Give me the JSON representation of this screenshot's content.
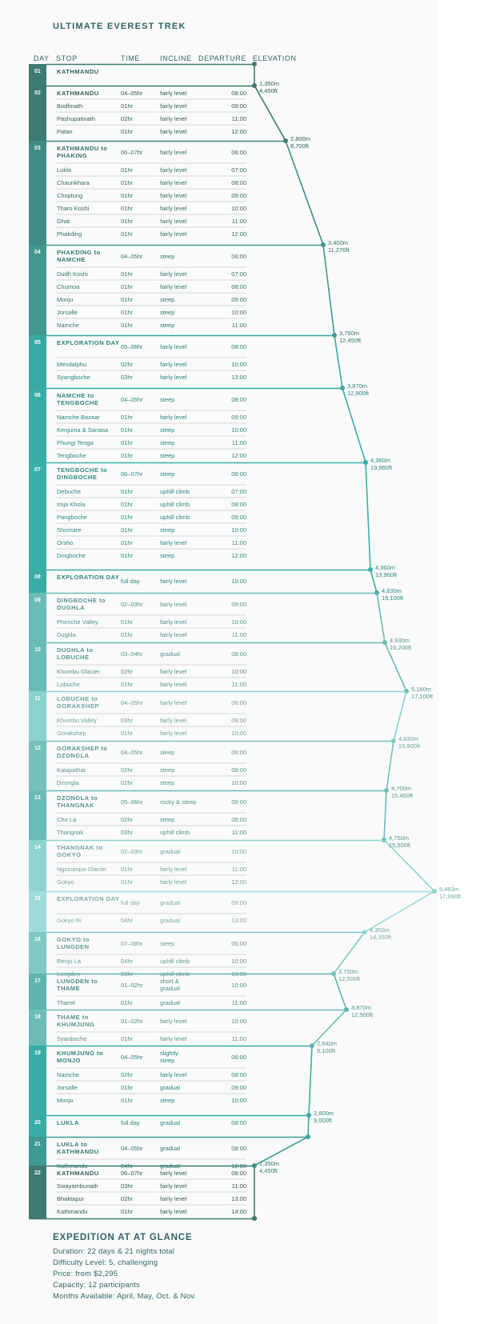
{
  "title": "ULTIMATE EVEREST TREK",
  "columns": {
    "day": "DAY",
    "stop": "STOP",
    "time": "TIME",
    "incline": "INCLINE",
    "departure": "DEPARTURE",
    "elevation": "ELEVATION"
  },
  "days": [
    {
      "day": "01",
      "color": "#3d7a74",
      "stops": [
        [
          "KATHMANDU",
          "",
          "",
          ""
        ]
      ],
      "elevation": [
        "1,350m",
        "4,450ft"
      ]
    },
    {
      "day": "02",
      "color": "#3d7a74",
      "stops": [
        [
          "KATHMANDU",
          "04–05hr",
          "fairly level",
          "08:00"
        ],
        [
          "Bodhnath",
          "01hr",
          "fairly level",
          "09:00"
        ],
        [
          "Pashupatinath",
          "02hr",
          "fairly level",
          "11:00"
        ],
        [
          "Patan",
          "01hr",
          "fairly level",
          "12:00"
        ]
      ],
      "elevation": [
        "2,800m",
        "8,700ft"
      ]
    },
    {
      "day": "03",
      "color": "#408c85",
      "stops": [
        [
          "KATHMANDU to PHAKING",
          "06–07hr",
          "fairly level",
          "06:00"
        ],
        [
          "Lukla",
          "01hr",
          "fairly level",
          "07:00"
        ],
        [
          "Chaurikhara",
          "01hr",
          "fairly level",
          "08:00"
        ],
        [
          "Choplung",
          "01hr",
          "fairly level",
          "09:00"
        ],
        [
          "Tharo Koshi",
          "01hr",
          "fairly level",
          "10:00"
        ],
        [
          "Ghat",
          "01hr",
          "fairly level",
          "11:00"
        ],
        [
          "Phakding",
          "01hr",
          "fairly level",
          "12:00"
        ]
      ],
      "elevation": [
        "3,400m",
        "11,270ft"
      ]
    },
    {
      "day": "04",
      "color": "#43978f",
      "stops": [
        [
          "PHAKDING to NAMCHE",
          "04–05hr",
          "steep",
          "06:00"
        ],
        [
          "Dudh Koshi",
          "01hr",
          "fairly level",
          "07:00"
        ],
        [
          "Chumoa",
          "01hr",
          "fairly level",
          "08:00"
        ],
        [
          "Monju",
          "01hr",
          "steep",
          "09:00"
        ],
        [
          "Jorsalle",
          "01hr",
          "steep",
          "10:00"
        ],
        [
          "Namche",
          "01hr",
          "steep",
          "11:00"
        ]
      ],
      "elevation": [
        "3,790m",
        "12,450ft"
      ]
    },
    {
      "day": "05",
      "color": "#38a8a2",
      "stops": [
        [
          "EXPLORATION DAY",
          "05–06hr",
          "fairly level",
          "08:00"
        ],
        [
          "Mendalphu",
          "02hr",
          "fairly level",
          "10:00"
        ],
        [
          "Syangboche",
          "03hr",
          "fairly level",
          "13:00"
        ]
      ],
      "elevation": [
        "3,870m",
        "12,900ft"
      ]
    },
    {
      "day": "06",
      "color": "#38aca5",
      "stops": [
        [
          "NAMCHE to TENGBOCHE",
          "04–05hr",
          "steep",
          "08:00"
        ],
        [
          "Namche Bazaar",
          "01hr",
          "fairly level",
          "09:00"
        ],
        [
          "Kenjuma & Sanasa",
          "01hr",
          "steep",
          "10:00"
        ],
        [
          "Phungi Tenga",
          "01hr",
          "steep",
          "11:00"
        ],
        [
          "Tengboche",
          "01hr",
          "steep",
          "12:00"
        ]
      ],
      "elevation": [
        "4,360m",
        "13,960ft"
      ]
    },
    {
      "day": "07",
      "color": "#38b0a9",
      "stops": [
        [
          "TENGBOCHE to DINGBOCHE",
          "06–07hr",
          "steep",
          "06:00"
        ],
        [
          "Debuche",
          "01hr",
          "uphill climb",
          "07:00"
        ],
        [
          "Imja Khola",
          "01hr",
          "uphill climb",
          "08:00"
        ],
        [
          "Pangboche",
          "01hr",
          "uphill climb",
          "09:00"
        ],
        [
          "Shomare",
          "01hr",
          "steep",
          "10:00"
        ],
        [
          "Orsho",
          "01hr",
          "fairly level",
          "11:00"
        ],
        [
          "Dingboche",
          "01hr",
          "steep",
          "12:00"
        ]
      ],
      "elevation": [
        "4,360m",
        "13,960ft"
      ]
    },
    {
      "day": "08",
      "color": "#3aaca6",
      "stops": [
        [
          "EXPLORATION DAY",
          "full day",
          "fairly level",
          "10:00"
        ]
      ],
      "elevation": [
        "4,630m",
        "15,100ft"
      ]
    },
    {
      "day": "09",
      "color": "#6bbcb6",
      "stops": [
        [
          "DINGBOCHE to DUGHLA",
          "02–03hr",
          "fairly level",
          "09:00"
        ],
        [
          "Pheriche Valley",
          "01hr",
          "fairly level",
          "10:00"
        ],
        [
          "Dughla",
          "01hr",
          "fairly level",
          "11:00"
        ]
      ],
      "elevation": [
        "4,930m",
        "16,200ft"
      ]
    },
    {
      "day": "10",
      "color": "#6bbcb6",
      "stops": [
        [
          "DUGHLA to LOBUCHE",
          "03–04hr",
          "gradual",
          "08:00"
        ],
        [
          "Khumbu Glacier",
          "02hr",
          "fairly level",
          "10:00"
        ],
        [
          "Lobuche",
          "01hr",
          "fairly level",
          "11:00"
        ]
      ],
      "elevation": [
        "5,160m",
        "17,100ft"
      ]
    },
    {
      "day": "11",
      "color": "#8ad2cd",
      "stops": [
        [
          "LOBUCHE to GORAKSHEP",
          "04–05hr",
          "fairly level",
          "06:00"
        ],
        [
          "Khumbu Valley",
          "03hr",
          "fairly level",
          "09:00"
        ],
        [
          "Gorakshep",
          "01hr",
          "fairly level",
          "10:00"
        ]
      ],
      "elevation": [
        "4,830m",
        "15,900ft"
      ]
    },
    {
      "day": "12",
      "color": "#74c0ba",
      "stops": [
        [
          "GORAKSHEP to DZONGLA",
          "04–05hr",
          "steep",
          "06:00"
        ],
        [
          "Kalapathar",
          "02hr",
          "steep",
          "08:00"
        ],
        [
          "Dzongla",
          "02hr",
          "steep",
          "10:00"
        ]
      ],
      "elevation": [
        "4,700m",
        "15,450ft"
      ]
    },
    {
      "day": "13",
      "color": "#6bbcb6",
      "stops": [
        [
          "DZONGLA to THANGNAK",
          "05–06hr",
          "rocky & steep",
          "06:00"
        ],
        [
          "Cho La",
          "02hr",
          "steep",
          "08:00"
        ],
        [
          "Thangnak",
          "03hr",
          "uphill climb",
          "11:00"
        ]
      ],
      "elevation": [
        "4,750m",
        "15,500ft"
      ]
    },
    {
      "day": "14",
      "color": "#8fd3cf",
      "stops": [
        [
          "THANGNAK to GOKYO",
          "02–03hr",
          "gradual",
          "10:00"
        ],
        [
          "Ngozumpa Glacier",
          "01hr",
          "fairly level",
          "11:00"
        ],
        [
          "Gokyo",
          "01hr",
          "fairly level",
          "12:00"
        ]
      ],
      "elevation": [
        "5,483m",
        "17,990ft"
      ]
    },
    {
      "day": "15",
      "color": "#9ddcd8",
      "stops": [
        [
          "EXPLORATION DAY",
          "full day",
          "gradual",
          "09:00"
        ],
        [
          "Gokyo Ri",
          "04hr",
          "gradual",
          "13:00"
        ]
      ],
      "elevation": [
        "4,350m",
        "14,350ft"
      ]
    },
    {
      "day": "16",
      "color": "#7fc8c3",
      "stops": [
        [
          "GOKYO to LUNGDEN",
          "07–08hr",
          "steep",
          "06:00"
        ],
        [
          "Renjo La",
          "04hr",
          "uphill climb",
          "10:00"
        ],
        [
          "Lungden",
          "03hr",
          "uphill climb",
          "13:00"
        ]
      ],
      "elevation": [
        "3,750m",
        "12,500ft"
      ]
    },
    {
      "day": "17",
      "color": "#5fb5ae",
      "stops": [
        [
          "LUNGDEN to THAME",
          "01–02hr",
          "short & gradual",
          "10:00"
        ],
        [
          "Thame",
          "01hr",
          "gradual",
          "11:00"
        ]
      ],
      "elevation": [
        "3,870m",
        "12,500ft"
      ]
    },
    {
      "day": "18",
      "color": "#6dbcb6",
      "stops": [
        [
          "THAME to KHUMJUNG",
          "01–02hr",
          "fairly level",
          "10:00"
        ],
        [
          "Syanboche",
          "01hr",
          "fairly level",
          "11:00"
        ]
      ],
      "elevation": [
        "2,840m",
        "9,100ft"
      ]
    },
    {
      "day": "19",
      "color": "#38aca5",
      "stops": [
        [
          "KHUMJUNG to MONJO",
          "04–05hr",
          "slightly steep",
          "06:00"
        ],
        [
          "Namche",
          "02hr",
          "fairly level",
          "08:00"
        ],
        [
          "Jorsalle",
          "01hr",
          "gradual",
          "09:00"
        ],
        [
          "Monjo",
          "01hr",
          "steep",
          "10:00"
        ]
      ],
      "elevation": [
        "2,800m",
        "9,000ft"
      ]
    },
    {
      "day": "20",
      "color": "#38aca5",
      "stops": [
        [
          "LUKLA",
          "full day",
          "gradual",
          "08:00"
        ]
      ],
      "elevation": [
        "",
        ""
      ]
    },
    {
      "day": "21",
      "color": "#3d9a92",
      "stops": [
        [
          "LUKLA to KATHMANDU",
          "04–05hr",
          "gradual",
          "08:00"
        ],
        [
          "Kathmandu",
          "04hr",
          "gradual",
          "12:00"
        ]
      ],
      "elevation": [
        "1,350m",
        "4,450ft"
      ]
    },
    {
      "day": "22",
      "color": "#3d7a74",
      "stops": [
        [
          "KATHMANDU",
          "06–07hr",
          "fairly level",
          "08:00"
        ],
        [
          "Swayambunath",
          "03hr",
          "fairly level",
          "11:00"
        ],
        [
          "Bhaktapur",
          "02hr",
          "fairly level",
          "13:00"
        ],
        [
          "Kathmandu",
          "01hr",
          "fairly level",
          "14:00"
        ]
      ],
      "elevation": [
        "",
        ""
      ]
    }
  ],
  "glance": {
    "title": "EXPEDITION AT AT GLANCE",
    "lines": [
      "Duration: 22 days & 21 nights total",
      "Difficulty Level: 5, challenging",
      "Price: from $2,295",
      "Capacity: 12 participants",
      "Months Available: April, May, Oct. & Nov."
    ]
  }
}
